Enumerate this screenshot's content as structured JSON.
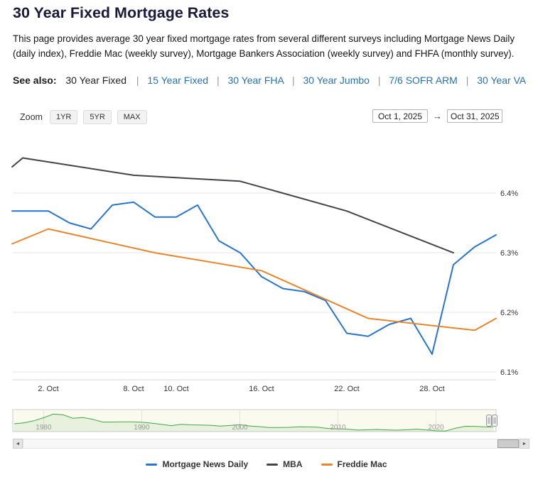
{
  "page": {
    "title": "30 Year Fixed Mortgage Rates",
    "description": "This page provides average 30 year fixed mortgage rates from several different surveys including Mortgage News Daily (daily index), Freddie Mac (weekly survey), Mortgage Bankers Association (weekly survey) and FHFA (monthly survey).",
    "see_also": {
      "label": "See also:",
      "current": "30 Year Fixed",
      "separator": "|",
      "links": [
        "15 Year Fixed",
        "30 Year FHA",
        "30 Year Jumbo",
        "7/6 SOFR ARM",
        "30 Year VA"
      ]
    }
  },
  "range_selector": {
    "zoom_label": "Zoom",
    "buttons": [
      "1YR",
      "5YR",
      "MAX"
    ],
    "from_date": "Oct 1, 2025",
    "to_date": "Oct 31, 2025"
  },
  "icons": {
    "range_arrow": "→",
    "scroll_left": "◄",
    "scroll_right": "►"
  },
  "colors": {
    "title": "#1a1a3a",
    "link": "#2a6fae",
    "mnd_blue": "#2a74cc",
    "mba_gray": "#434348",
    "freddie_orange": "#e8862e",
    "navigator_green": "#40a840",
    "gridline": "#e6e6e6"
  },
  "chart_data": {
    "type": "line",
    "title": "",
    "note": "x in points = index into x_axis.dates (business days); negative x = line entering plot from pre-range data. Values are rates in percent.",
    "x_axis": {
      "unit": "date (business days, October 2025)",
      "dates": [
        "Oct 1",
        "Oct 2",
        "Oct 3",
        "Oct 6",
        "Oct 7",
        "Oct 8",
        "Oct 9",
        "Oct 10",
        "Oct 13",
        "Oct 14",
        "Oct 15",
        "Oct 16",
        "Oct 17",
        "Oct 20",
        "Oct 21",
        "Oct 22",
        "Oct 23",
        "Oct 24",
        "Oct 27",
        "Oct 28",
        "Oct 29",
        "Oct 30",
        "Oct 31"
      ],
      "tick_labels": [
        "2. Oct",
        "8. Oct",
        "10. Oct",
        "16. Oct",
        "22. Oct",
        "28. Oct"
      ],
      "tick_day_indices": [
        1,
        5,
        7,
        11,
        15,
        19
      ]
    },
    "y_axis": {
      "unit": "percent",
      "tick_labels": [
        "6.1%",
        "6.2%",
        "6.3%",
        "6.4%"
      ],
      "tick_values": [
        6.1,
        6.2,
        6.3,
        6.4
      ],
      "range": [
        6.087,
        6.503
      ],
      "grid": true,
      "labels_position": "right"
    },
    "legend_position": "bottom-center",
    "series": [
      {
        "name": "Mortgage News Daily",
        "color": "#2a74cc",
        "frequency": "daily",
        "points": [
          [
            -0.7,
            6.37
          ],
          [
            0,
            6.37
          ],
          [
            1,
            6.37
          ],
          [
            2,
            6.35
          ],
          [
            3,
            6.34
          ],
          [
            4,
            6.38
          ],
          [
            5,
            6.385
          ],
          [
            6,
            6.36
          ],
          [
            7,
            6.36
          ],
          [
            8,
            6.38
          ],
          [
            9,
            6.32
          ],
          [
            10,
            6.3
          ],
          [
            11,
            6.26
          ],
          [
            12,
            6.24
          ],
          [
            13,
            6.235
          ],
          [
            14,
            6.22
          ],
          [
            15,
            6.165
          ],
          [
            16,
            6.16
          ],
          [
            17,
            6.18
          ],
          [
            18,
            6.19
          ],
          [
            19,
            6.13
          ],
          [
            20,
            6.28
          ],
          [
            21,
            6.31
          ],
          [
            22,
            6.33
          ]
        ]
      },
      {
        "name": "MBA",
        "color": "#434348",
        "frequency": "weekly",
        "points": [
          [
            -0.7,
            6.444
          ],
          [
            -0.2,
            6.459
          ],
          [
            5,
            6.43
          ],
          [
            10,
            6.42
          ],
          [
            15,
            6.37
          ],
          [
            20,
            6.3
          ]
        ]
      },
      {
        "name": "Freddie Mac",
        "color": "#e8862e",
        "frequency": "weekly",
        "points": [
          [
            -0.7,
            6.315
          ],
          [
            1,
            6.34
          ],
          [
            6,
            6.3
          ],
          [
            11,
            6.27
          ],
          [
            16,
            6.19
          ],
          [
            21,
            6.17
          ],
          [
            22,
            6.19
          ]
        ]
      }
    ],
    "navigator": {
      "color": "#40a840",
      "tick_labels": [
        "1980",
        "1990",
        "2000",
        "2010",
        "2020"
      ],
      "year_range": [
        1977,
        2025.9
      ],
      "value_range": [
        2.5,
        18.5
      ],
      "series": [
        [
          1977,
          8.8
        ],
        [
          1978,
          9.6
        ],
        [
          1979,
          11.2
        ],
        [
          1980,
          13.7
        ],
        [
          1981,
          16.6
        ],
        [
          1982,
          16.0
        ],
        [
          1983,
          13.2
        ],
        [
          1984,
          13.9
        ],
        [
          1985,
          12.4
        ],
        [
          1986,
          10.2
        ],
        [
          1987,
          10.2
        ],
        [
          1988,
          10.3
        ],
        [
          1989,
          10.3
        ],
        [
          1990,
          10.1
        ],
        [
          1991,
          9.3
        ],
        [
          1992,
          8.4
        ],
        [
          1993,
          7.3
        ],
        [
          1994,
          8.4
        ],
        [
          1995,
          7.9
        ],
        [
          1996,
          7.8
        ],
        [
          1997,
          7.6
        ],
        [
          1998,
          6.9
        ],
        [
          1999,
          7.4
        ],
        [
          2000,
          8.1
        ],
        [
          2001,
          7.0
        ],
        [
          2002,
          6.5
        ],
        [
          2003,
          5.8
        ],
        [
          2004,
          5.8
        ],
        [
          2005,
          5.9
        ],
        [
          2006,
          6.4
        ],
        [
          2007,
          6.3
        ],
        [
          2008,
          6.0
        ],
        [
          2009,
          5.0
        ],
        [
          2010,
          4.7
        ],
        [
          2011,
          4.5
        ],
        [
          2012,
          3.7
        ],
        [
          2013,
          4.0
        ],
        [
          2014,
          4.2
        ],
        [
          2015,
          3.9
        ],
        [
          2016,
          3.65
        ],
        [
          2017,
          4.0
        ],
        [
          2018,
          4.5
        ],
        [
          2019,
          3.9
        ],
        [
          2020,
          3.1
        ],
        [
          2021,
          3.0
        ],
        [
          2022,
          5.3
        ],
        [
          2023,
          6.8
        ],
        [
          2024,
          6.7
        ],
        [
          2025,
          6.3
        ],
        [
          2025.8,
          6.2
        ]
      ]
    }
  }
}
